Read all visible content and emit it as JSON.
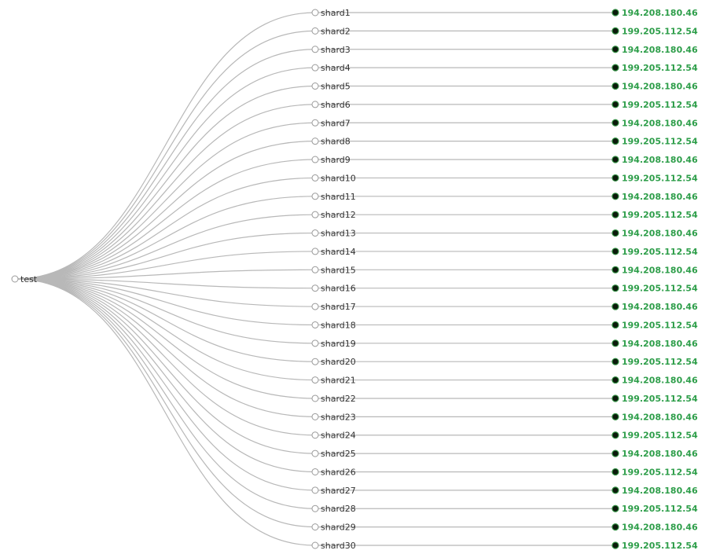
{
  "tree": {
    "root": "test",
    "shards": [
      {
        "name": "shard1",
        "host": "194.208.180.46"
      },
      {
        "name": "shard2",
        "host": "199.205.112.54"
      },
      {
        "name": "shard3",
        "host": "194.208.180.46"
      },
      {
        "name": "shard4",
        "host": "199.205.112.54"
      },
      {
        "name": "shard5",
        "host": "194.208.180.46"
      },
      {
        "name": "shard6",
        "host": "199.205.112.54"
      },
      {
        "name": "shard7",
        "host": "194.208.180.46"
      },
      {
        "name": "shard8",
        "host": "199.205.112.54"
      },
      {
        "name": "shard9",
        "host": "194.208.180.46"
      },
      {
        "name": "shard10",
        "host": "199.205.112.54"
      },
      {
        "name": "shard11",
        "host": "194.208.180.46"
      },
      {
        "name": "shard12",
        "host": "199.205.112.54"
      },
      {
        "name": "shard13",
        "host": "194.208.180.46"
      },
      {
        "name": "shard14",
        "host": "199.205.112.54"
      },
      {
        "name": "shard15",
        "host": "194.208.180.46"
      },
      {
        "name": "shard16",
        "host": "199.205.112.54"
      },
      {
        "name": "shard17",
        "host": "194.208.180.46"
      },
      {
        "name": "shard18",
        "host": "199.205.112.54"
      },
      {
        "name": "shard19",
        "host": "194.208.180.46"
      },
      {
        "name": "shard20",
        "host": "199.205.112.54"
      },
      {
        "name": "shard21",
        "host": "194.208.180.46"
      },
      {
        "name": "shard22",
        "host": "199.205.112.54"
      },
      {
        "name": "shard23",
        "host": "194.208.180.46"
      },
      {
        "name": "shard24",
        "host": "199.205.112.54"
      },
      {
        "name": "shard25",
        "host": "194.208.180.46"
      },
      {
        "name": "shard26",
        "host": "199.205.112.54"
      },
      {
        "name": "shard27",
        "host": "194.208.180.46"
      },
      {
        "name": "shard28",
        "host": "199.205.112.54"
      },
      {
        "name": "shard29",
        "host": "194.208.180.46"
      },
      {
        "name": "shard30",
        "host": "199.205.112.54"
      }
    ]
  },
  "colors": {
    "link": "#b8b8b8",
    "host_text": "#2e9e4a",
    "host_node": "#0b1a0b"
  }
}
